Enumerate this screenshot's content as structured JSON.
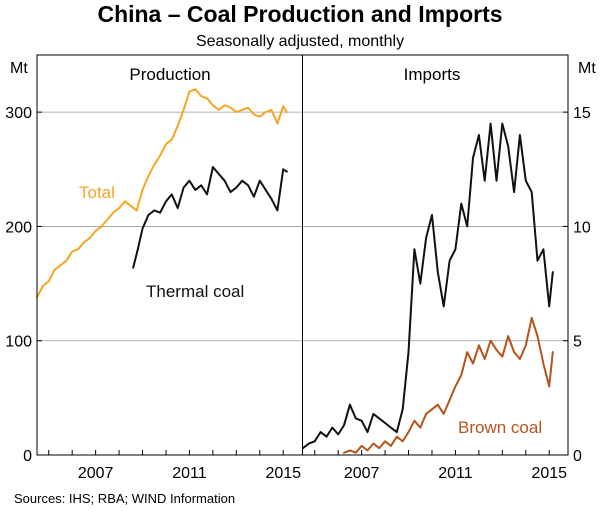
{
  "title": "China – Coal Production and Imports",
  "subtitle": "Seasonally adjusted, monthly",
  "source": "Sources:  IHS; RBA; WIND Information",
  "colors": {
    "total": "#f5a623",
    "thermal": "#111111",
    "imports": "#111111",
    "brown": "#b5541b",
    "grid": "#999999"
  },
  "chart_data": [
    {
      "type": "line",
      "title": "Production",
      "ylabel": "Mt",
      "ylim": [
        0,
        350
      ],
      "yticks": [
        "0",
        "100",
        "200",
        "300"
      ],
      "xlim": [
        2004.5,
        2015.8
      ],
      "xticks": [
        "2007",
        "2011",
        "2015"
      ],
      "series": [
        {
          "name": "Total",
          "color": "#f5a623",
          "x": [
            2004.5,
            2004.75,
            2005.0,
            2005.25,
            2005.5,
            2005.75,
            2006.0,
            2006.25,
            2006.5,
            2006.75,
            2007.0,
            2007.25,
            2007.5,
            2007.75,
            2008.0,
            2008.25,
            2008.5,
            2008.75,
            2009.0,
            2009.25,
            2009.5,
            2009.75,
            2010.0,
            2010.25,
            2010.5,
            2010.75,
            2011.0,
            2011.25,
            2011.5,
            2011.75,
            2012.0,
            2012.25,
            2012.5,
            2012.75,
            2013.0,
            2013.25,
            2013.5,
            2013.75,
            2014.0,
            2014.25,
            2014.5,
            2014.75,
            2015.0,
            2015.15
          ],
          "values": [
            138,
            148,
            152,
            162,
            166,
            170,
            178,
            180,
            186,
            190,
            196,
            200,
            206,
            212,
            216,
            222,
            218,
            214,
            232,
            244,
            254,
            262,
            272,
            276,
            288,
            302,
            318,
            320,
            314,
            312,
            306,
            302,
            306,
            304,
            300,
            302,
            304,
            298,
            296,
            300,
            302,
            290,
            305,
            300
          ]
        },
        {
          "name": "Thermal coal",
          "color": "#111111",
          "x": [
            2008.6,
            2008.8,
            2009.0,
            2009.25,
            2009.5,
            2009.75,
            2010.0,
            2010.25,
            2010.5,
            2010.75,
            2011.0,
            2011.25,
            2011.5,
            2011.75,
            2012.0,
            2012.25,
            2012.5,
            2012.75,
            2013.0,
            2013.25,
            2013.5,
            2013.75,
            2014.0,
            2014.25,
            2014.5,
            2014.75,
            2015.0,
            2015.15
          ],
          "values": [
            164,
            180,
            198,
            210,
            214,
            212,
            222,
            228,
            216,
            234,
            240,
            232,
            236,
            228,
            252,
            246,
            240,
            230,
            234,
            240,
            236,
            226,
            240,
            232,
            224,
            214,
            250,
            248
          ]
        }
      ]
    },
    {
      "type": "line",
      "title": "Imports",
      "ylabel": "Mt",
      "ylim": [
        0,
        17.5
      ],
      "yticks": [
        "0",
        "5",
        "10",
        "15"
      ],
      "xlim": [
        2004.5,
        2015.8
      ],
      "xticks": [
        "2007",
        "2011",
        "2015"
      ],
      "series": [
        {
          "name": "",
          "color": "#111111",
          "x": [
            2004.5,
            2004.75,
            2005.0,
            2005.25,
            2005.5,
            2005.75,
            2006.0,
            2006.25,
            2006.5,
            2006.75,
            2007.0,
            2007.25,
            2007.5,
            2007.75,
            2008.0,
            2008.25,
            2008.5,
            2008.75,
            2009.0,
            2009.25,
            2009.5,
            2009.75,
            2010.0,
            2010.25,
            2010.5,
            2010.75,
            2011.0,
            2011.25,
            2011.5,
            2011.75,
            2012.0,
            2012.25,
            2012.5,
            2012.75,
            2013.0,
            2013.25,
            2013.5,
            2013.75,
            2014.0,
            2014.25,
            2014.5,
            2014.75,
            2015.0,
            2015.15
          ],
          "values": [
            0.3,
            0.5,
            0.6,
            1.0,
            0.8,
            1.2,
            0.9,
            1.3,
            2.2,
            1.6,
            1.5,
            1.0,
            1.8,
            1.6,
            1.4,
            1.2,
            1.0,
            2.0,
            4.5,
            9.0,
            7.5,
            9.5,
            10.5,
            8.0,
            6.5,
            8.5,
            9.0,
            11.0,
            10.0,
            13.0,
            14.0,
            12.0,
            14.5,
            12.0,
            14.5,
            13.5,
            11.5,
            14.0,
            12.0,
            11.5,
            8.5,
            9.0,
            6.5,
            8.0
          ]
        },
        {
          "name": "Brown coal",
          "color": "#b5541b",
          "x": [
            2006.25,
            2006.5,
            2006.75,
            2007.0,
            2007.25,
            2007.5,
            2007.75,
            2008.0,
            2008.25,
            2008.5,
            2008.75,
            2009.0,
            2009.25,
            2009.5,
            2009.75,
            2010.0,
            2010.25,
            2010.5,
            2010.75,
            2011.0,
            2011.25,
            2011.5,
            2011.75,
            2012.0,
            2012.25,
            2012.5,
            2012.75,
            2013.0,
            2013.25,
            2013.5,
            2013.75,
            2014.0,
            2014.25,
            2014.5,
            2014.75,
            2015.0,
            2015.15
          ],
          "values": [
            0.1,
            0.2,
            0.1,
            0.4,
            0.2,
            0.5,
            0.3,
            0.6,
            0.4,
            0.8,
            0.6,
            1.0,
            1.5,
            1.2,
            1.8,
            2.0,
            2.2,
            1.8,
            2.4,
            3.0,
            3.5,
            4.5,
            4.0,
            4.8,
            4.2,
            5.0,
            4.6,
            4.3,
            5.2,
            4.5,
            4.2,
            4.8,
            6.0,
            5.2,
            4.0,
            3.0,
            4.5
          ]
        }
      ]
    }
  ]
}
